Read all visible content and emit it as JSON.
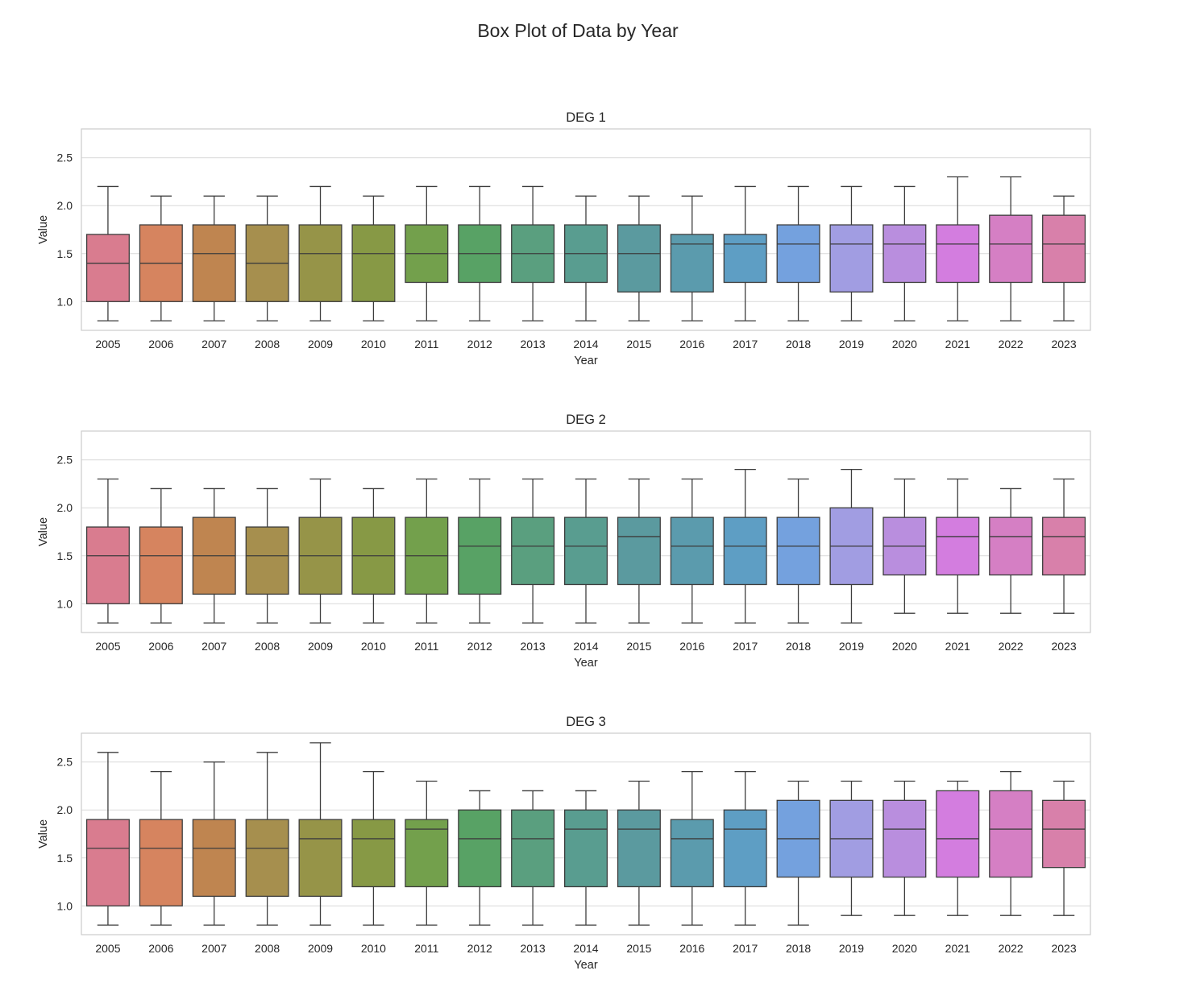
{
  "chart_data": {
    "type": "box",
    "title": "Box Plot of Data by Year",
    "ylim": [
      0.7,
      2.8
    ],
    "yticks": [
      1.0,
      1.5,
      2.0,
      2.5
    ],
    "grid": true,
    "xlabel": "Year",
    "ylabel": "Value",
    "categories": [
      "2005",
      "2006",
      "2007",
      "2008",
      "2009",
      "2010",
      "2011",
      "2012",
      "2013",
      "2014",
      "2015",
      "2016",
      "2017",
      "2018",
      "2019",
      "2020",
      "2021",
      "2022",
      "2023"
    ],
    "palette": [
      "#d97c8f",
      "#d6845f",
      "#bf8550",
      "#a68f4e",
      "#969448",
      "#879945",
      "#73a04c",
      "#58a265",
      "#5a9f7f",
      "#599d90",
      "#5b9a9f",
      "#5b9bad",
      "#5e9ec4",
      "#74a1de",
      "#a19de2",
      "#b98ede",
      "#d37ddf",
      "#d57fc4",
      "#d880aa"
    ],
    "panels": [
      {
        "title": "DEG 1",
        "boxes": [
          {
            "whislo": 0.8,
            "q1": 1.0,
            "med": 1.4,
            "q3": 1.7,
            "whishi": 2.2
          },
          {
            "whislo": 0.8,
            "q1": 1.0,
            "med": 1.4,
            "q3": 1.8,
            "whishi": 2.1
          },
          {
            "whislo": 0.8,
            "q1": 1.0,
            "med": 1.5,
            "q3": 1.8,
            "whishi": 2.1
          },
          {
            "whislo": 0.8,
            "q1": 1.0,
            "med": 1.4,
            "q3": 1.8,
            "whishi": 2.1
          },
          {
            "whislo": 0.8,
            "q1": 1.0,
            "med": 1.5,
            "q3": 1.8,
            "whishi": 2.2
          },
          {
            "whislo": 0.8,
            "q1": 1.0,
            "med": 1.5,
            "q3": 1.8,
            "whishi": 2.1
          },
          {
            "whislo": 0.8,
            "q1": 1.2,
            "med": 1.5,
            "q3": 1.8,
            "whishi": 2.2
          },
          {
            "whislo": 0.8,
            "q1": 1.2,
            "med": 1.5,
            "q3": 1.8,
            "whishi": 2.2
          },
          {
            "whislo": 0.8,
            "q1": 1.2,
            "med": 1.5,
            "q3": 1.8,
            "whishi": 2.2
          },
          {
            "whislo": 0.8,
            "q1": 1.2,
            "med": 1.5,
            "q3": 1.8,
            "whishi": 2.1
          },
          {
            "whislo": 0.8,
            "q1": 1.1,
            "med": 1.5,
            "q3": 1.8,
            "whishi": 2.1
          },
          {
            "whislo": 0.8,
            "q1": 1.1,
            "med": 1.6,
            "q3": 1.7,
            "whishi": 2.1
          },
          {
            "whislo": 0.8,
            "q1": 1.2,
            "med": 1.6,
            "q3": 1.7,
            "whishi": 2.2
          },
          {
            "whislo": 0.8,
            "q1": 1.2,
            "med": 1.6,
            "q3": 1.8,
            "whishi": 2.2
          },
          {
            "whislo": 0.8,
            "q1": 1.1,
            "med": 1.6,
            "q3": 1.8,
            "whishi": 2.2
          },
          {
            "whislo": 0.8,
            "q1": 1.2,
            "med": 1.6,
            "q3": 1.8,
            "whishi": 2.2
          },
          {
            "whislo": 0.8,
            "q1": 1.2,
            "med": 1.6,
            "q3": 1.8,
            "whishi": 2.3
          },
          {
            "whislo": 0.8,
            "q1": 1.2,
            "med": 1.6,
            "q3": 1.9,
            "whishi": 2.3
          },
          {
            "whislo": 0.8,
            "q1": 1.2,
            "med": 1.6,
            "q3": 1.9,
            "whishi": 2.1
          }
        ]
      },
      {
        "title": "DEG 2",
        "boxes": [
          {
            "whislo": 0.8,
            "q1": 1.0,
            "med": 1.5,
            "q3": 1.8,
            "whishi": 2.3
          },
          {
            "whislo": 0.8,
            "q1": 1.0,
            "med": 1.5,
            "q3": 1.8,
            "whishi": 2.2
          },
          {
            "whislo": 0.8,
            "q1": 1.1,
            "med": 1.5,
            "q3": 1.9,
            "whishi": 2.2
          },
          {
            "whislo": 0.8,
            "q1": 1.1,
            "med": 1.5,
            "q3": 1.8,
            "whishi": 2.2
          },
          {
            "whislo": 0.8,
            "q1": 1.1,
            "med": 1.5,
            "q3": 1.9,
            "whishi": 2.3
          },
          {
            "whislo": 0.8,
            "q1": 1.1,
            "med": 1.5,
            "q3": 1.9,
            "whishi": 2.2
          },
          {
            "whislo": 0.8,
            "q1": 1.1,
            "med": 1.5,
            "q3": 1.9,
            "whishi": 2.3
          },
          {
            "whislo": 0.8,
            "q1": 1.1,
            "med": 1.6,
            "q3": 1.9,
            "whishi": 2.3
          },
          {
            "whislo": 0.8,
            "q1": 1.2,
            "med": 1.6,
            "q3": 1.9,
            "whishi": 2.3
          },
          {
            "whislo": 0.8,
            "q1": 1.2,
            "med": 1.6,
            "q3": 1.9,
            "whishi": 2.3
          },
          {
            "whislo": 0.8,
            "q1": 1.2,
            "med": 1.7,
            "q3": 1.9,
            "whishi": 2.3
          },
          {
            "whislo": 0.8,
            "q1": 1.2,
            "med": 1.6,
            "q3": 1.9,
            "whishi": 2.3
          },
          {
            "whislo": 0.8,
            "q1": 1.2,
            "med": 1.6,
            "q3": 1.9,
            "whishi": 2.4
          },
          {
            "whislo": 0.8,
            "q1": 1.2,
            "med": 1.6,
            "q3": 1.9,
            "whishi": 2.3
          },
          {
            "whislo": 0.8,
            "q1": 1.2,
            "med": 1.6,
            "q3": 2.0,
            "whishi": 2.4
          },
          {
            "whislo": 0.9,
            "q1": 1.3,
            "med": 1.6,
            "q3": 1.9,
            "whishi": 2.3
          },
          {
            "whislo": 0.9,
            "q1": 1.3,
            "med": 1.7,
            "q3": 1.9,
            "whishi": 2.3
          },
          {
            "whislo": 0.9,
            "q1": 1.3,
            "med": 1.7,
            "q3": 1.9,
            "whishi": 2.2
          },
          {
            "whislo": 0.9,
            "q1": 1.3,
            "med": 1.7,
            "q3": 1.9,
            "whishi": 2.3
          }
        ]
      },
      {
        "title": "DEG 3",
        "boxes": [
          {
            "whislo": 0.8,
            "q1": 1.0,
            "med": 1.6,
            "q3": 1.9,
            "whishi": 2.6
          },
          {
            "whislo": 0.8,
            "q1": 1.0,
            "med": 1.6,
            "q3": 1.9,
            "whishi": 2.4
          },
          {
            "whislo": 0.8,
            "q1": 1.1,
            "med": 1.6,
            "q3": 1.9,
            "whishi": 2.5
          },
          {
            "whislo": 0.8,
            "q1": 1.1,
            "med": 1.6,
            "q3": 1.9,
            "whishi": 2.6
          },
          {
            "whislo": 0.8,
            "q1": 1.1,
            "med": 1.7,
            "q3": 1.9,
            "whishi": 2.7
          },
          {
            "whislo": 0.8,
            "q1": 1.2,
            "med": 1.7,
            "q3": 1.9,
            "whishi": 2.4
          },
          {
            "whislo": 0.8,
            "q1": 1.2,
            "med": 1.8,
            "q3": 1.9,
            "whishi": 2.3
          },
          {
            "whislo": 0.8,
            "q1": 1.2,
            "med": 1.7,
            "q3": 2.0,
            "whishi": 2.2
          },
          {
            "whislo": 0.8,
            "q1": 1.2,
            "med": 1.7,
            "q3": 2.0,
            "whishi": 2.2
          },
          {
            "whislo": 0.8,
            "q1": 1.2,
            "med": 1.8,
            "q3": 2.0,
            "whishi": 2.2
          },
          {
            "whislo": 0.8,
            "q1": 1.2,
            "med": 1.8,
            "q3": 2.0,
            "whishi": 2.3
          },
          {
            "whislo": 0.8,
            "q1": 1.2,
            "med": 1.7,
            "q3": 1.9,
            "whishi": 2.4
          },
          {
            "whislo": 0.8,
            "q1": 1.2,
            "med": 1.8,
            "q3": 2.0,
            "whishi": 2.4
          },
          {
            "whislo": 0.8,
            "q1": 1.3,
            "med": 1.7,
            "q3": 2.1,
            "whishi": 2.3
          },
          {
            "whislo": 0.9,
            "q1": 1.3,
            "med": 1.7,
            "q3": 2.1,
            "whishi": 2.3
          },
          {
            "whislo": 0.9,
            "q1": 1.3,
            "med": 1.8,
            "q3": 2.1,
            "whishi": 2.3
          },
          {
            "whislo": 0.9,
            "q1": 1.3,
            "med": 1.7,
            "q3": 2.2,
            "whishi": 2.3
          },
          {
            "whislo": 0.9,
            "q1": 1.3,
            "med": 1.8,
            "q3": 2.2,
            "whishi": 2.4
          },
          {
            "whislo": 0.9,
            "q1": 1.4,
            "med": 1.8,
            "q3": 2.1,
            "whishi": 2.3
          }
        ]
      }
    ]
  }
}
